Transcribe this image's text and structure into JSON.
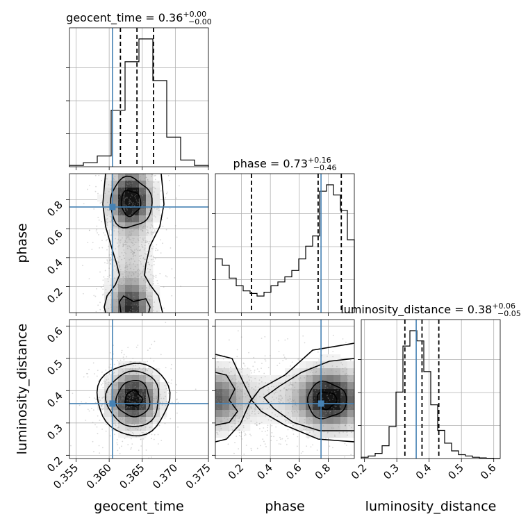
{
  "chart_data": {
    "type": "corner",
    "parameters": [
      {
        "name": "geocent_time",
        "label": "geocent_time",
        "title_prefix": "geocent_time = ",
        "median": "0.36",
        "plus": "+0.00",
        "minus": "−0.00",
        "range": [
          0.354,
          0.375
        ],
        "ticks": [
          0.355,
          0.36,
          0.365,
          0.37,
          0.375
        ],
        "tick_labels": [
          "0.355",
          "0.360",
          "0.365",
          "0.370",
          "0.375"
        ],
        "truth": 0.3605,
        "quantiles": [
          0.3617,
          0.3642,
          0.3667
        ],
        "hist_bins": [
          0.354,
          0.3561,
          0.3582,
          0.3603,
          0.3624,
          0.3645,
          0.3666,
          0.3687,
          0.3708,
          0.3729,
          0.375
        ],
        "hist_values": [
          1,
          3,
          8,
          42,
          78,
          95,
          64,
          22,
          5,
          1
        ]
      },
      {
        "name": "phase",
        "label": "phase",
        "title_prefix": "phase = ",
        "median": "0.73",
        "plus": "+0.16",
        "minus": "−0.46",
        "range": [
          0.02,
          0.98
        ],
        "ticks": [
          0.2,
          0.4,
          0.6,
          0.8
        ],
        "tick_labels": [
          "0.2",
          "0.4",
          "0.6",
          "0.8"
        ],
        "truth": 0.75,
        "quantiles": [
          0.27,
          0.73,
          0.89
        ],
        "hist_bins": [
          0.02,
          0.068,
          0.116,
          0.164,
          0.212,
          0.26,
          0.308,
          0.356,
          0.404,
          0.452,
          0.5,
          0.548,
          0.596,
          0.644,
          0.692,
          0.74,
          0.788,
          0.836,
          0.884,
          0.932,
          0.98
        ],
        "hist_values": [
          0.42,
          0.37,
          0.27,
          0.21,
          0.17,
          0.15,
          0.13,
          0.16,
          0.21,
          0.24,
          0.28,
          0.33,
          0.42,
          0.52,
          0.6,
          0.95,
          1.0,
          0.92,
          0.8,
          0.57
        ]
      },
      {
        "name": "luminosity_distance",
        "label": "luminosity_distance",
        "title_prefix": "luminosity_distance = ",
        "median": "0.38",
        "plus": "+0.06",
        "minus": "−0.05",
        "range": [
          0.19,
          0.62
        ],
        "ticks": [
          0.2,
          0.3,
          0.4,
          0.5,
          0.6
        ],
        "tick_labels": [
          "0.2",
          "0.3",
          "0.4",
          "0.5",
          "0.6"
        ],
        "truth": 0.36,
        "quantiles": [
          0.325,
          0.378,
          0.43
        ],
        "hist_bins": [
          0.19,
          0.2115,
          0.233,
          0.2545,
          0.276,
          0.2975,
          0.319,
          0.3405,
          0.362,
          0.3835,
          0.405,
          0.4265,
          0.448,
          0.4695,
          0.491,
          0.5125,
          0.534,
          0.5555,
          0.577,
          0.5985,
          0.62
        ],
        "hist_values": [
          1,
          2,
          4,
          10,
          25,
          52,
          88,
          100,
          92,
          68,
          42,
          22,
          12,
          6,
          3,
          2,
          1,
          0.5,
          0.2,
          0
        ]
      }
    ],
    "contours_2d": [
      {
        "x_param": "geocent_time",
        "y_param": "phase",
        "x_center": 0.3645,
        "x_sigma": 0.0017,
        "y_range_note": "bimodal in phase near 0.05 and 0.80"
      },
      {
        "x_param": "geocent_time",
        "y_param": "luminosity_distance",
        "x_center": 0.3645,
        "y_center": 0.375
      },
      {
        "x_param": "phase",
        "y_param": "luminosity_distance",
        "x_center": 0.8,
        "y_center": 0.37
      }
    ],
    "truth_color": "#4682b4",
    "grid": true
  }
}
